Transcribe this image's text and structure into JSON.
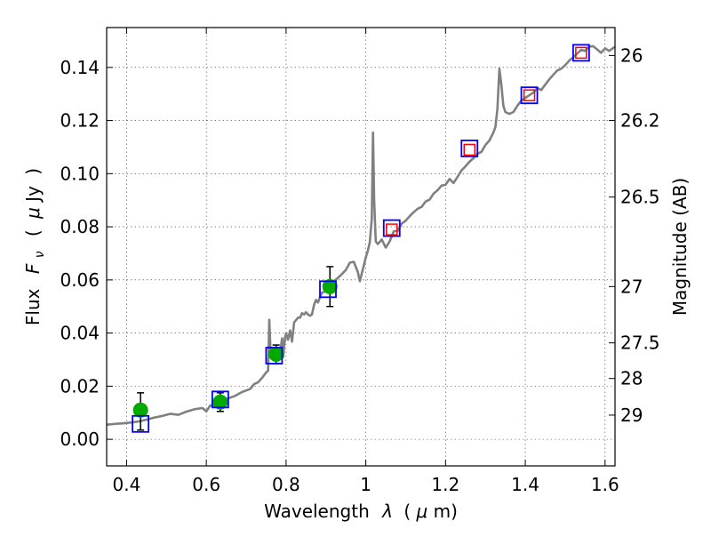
{
  "chart_data": {
    "type": "scatter",
    "title": "",
    "xlabel_parts": [
      "Wavelength",
      "λ",
      "(",
      "μ",
      "m)"
    ],
    "ylabel_parts": [
      "Flux",
      "F",
      "ν",
      "(",
      "μ",
      "Jy",
      ")"
    ],
    "y2label": "Magnitude (AB)",
    "xlim": [
      0.35,
      1.625
    ],
    "ylim": [
      -0.01,
      0.155
    ],
    "grid": true,
    "xticks": [
      {
        "v": 0.4,
        "label": "0.4"
      },
      {
        "v": 0.6,
        "label": "0.6"
      },
      {
        "v": 0.8,
        "label": "0.8"
      },
      {
        "v": 1.0,
        "label": "1"
      },
      {
        "v": 1.2,
        "label": "1.2"
      },
      {
        "v": 1.4,
        "label": "1.4"
      },
      {
        "v": 1.6,
        "label": "1.6"
      }
    ],
    "yticks": [
      {
        "v": 0.0,
        "label": "0.00"
      },
      {
        "v": 0.02,
        "label": "0.02"
      },
      {
        "v": 0.04,
        "label": "0.04"
      },
      {
        "v": 0.06,
        "label": "0.06"
      },
      {
        "v": 0.08,
        "label": "0.08"
      },
      {
        "v": 0.1,
        "label": "0.10"
      },
      {
        "v": 0.12,
        "label": "0.12"
      },
      {
        "v": 0.14,
        "label": "0.14"
      }
    ],
    "y2ticks": [
      {
        "flux": 0.1445,
        "label": "26"
      },
      {
        "flux": 0.12,
        "label": "26.2"
      },
      {
        "flux": 0.0912,
        "label": "26.5"
      },
      {
        "flux": 0.0575,
        "label": "27"
      },
      {
        "flux": 0.0363,
        "label": "27.5"
      },
      {
        "flux": 0.0229,
        "label": "28"
      },
      {
        "flux": 0.0091,
        "label": "29"
      }
    ],
    "series": [
      {
        "kind": "line",
        "color": "#808080",
        "points": [
          [
            0.35,
            0.0055
          ],
          [
            0.37,
            0.0058
          ],
          [
            0.39,
            0.006
          ],
          [
            0.41,
            0.0063
          ],
          [
            0.43,
            0.0067
          ],
          [
            0.45,
            0.0074
          ],
          [
            0.47,
            0.0082
          ],
          [
            0.49,
            0.0088
          ],
          [
            0.51,
            0.0096
          ],
          [
            0.53,
            0.0092
          ],
          [
            0.55,
            0.0104
          ],
          [
            0.57,
            0.0113
          ],
          [
            0.59,
            0.0118
          ],
          [
            0.6,
            0.0105
          ],
          [
            0.61,
            0.0128
          ],
          [
            0.62,
            0.0125
          ],
          [
            0.63,
            0.014
          ],
          [
            0.64,
            0.0138
          ],
          [
            0.65,
            0.0152
          ],
          [
            0.67,
            0.0162
          ],
          [
            0.69,
            0.0178
          ],
          [
            0.71,
            0.019
          ],
          [
            0.72,
            0.0208
          ],
          [
            0.73,
            0.0215
          ],
          [
            0.74,
            0.0232
          ],
          [
            0.75,
            0.0252
          ],
          [
            0.755,
            0.0258
          ],
          [
            0.758,
            0.045
          ],
          [
            0.761,
            0.033
          ],
          [
            0.765,
            0.0305
          ],
          [
            0.77,
            0.031
          ],
          [
            0.775,
            0.034
          ],
          [
            0.78,
            0.0315
          ],
          [
            0.785,
            0.033
          ],
          [
            0.79,
            0.038
          ],
          [
            0.793,
            0.031
          ],
          [
            0.797,
            0.038
          ],
          [
            0.8,
            0.0398
          ],
          [
            0.805,
            0.0375
          ],
          [
            0.81,
            0.041
          ],
          [
            0.815,
            0.0368
          ],
          [
            0.82,
            0.044
          ],
          [
            0.83,
            0.0458
          ],
          [
            0.835,
            0.0458
          ],
          [
            0.84,
            0.0475
          ],
          [
            0.845,
            0.047
          ],
          [
            0.85,
            0.0478
          ],
          [
            0.855,
            0.047
          ],
          [
            0.86,
            0.0465
          ],
          [
            0.865,
            0.047
          ],
          [
            0.87,
            0.0505
          ],
          [
            0.875,
            0.0525
          ],
          [
            0.88,
            0.0515
          ],
          [
            0.885,
            0.0535
          ],
          [
            0.89,
            0.0552
          ],
          [
            0.9,
            0.0558
          ],
          [
            0.91,
            0.0578
          ],
          [
            0.92,
            0.0595
          ],
          [
            0.93,
            0.0608
          ],
          [
            0.94,
            0.0622
          ],
          [
            0.95,
            0.0638
          ],
          [
            0.96,
            0.0665
          ],
          [
            0.97,
            0.0668
          ],
          [
            0.98,
            0.063
          ],
          [
            0.985,
            0.0595
          ],
          [
            0.99,
            0.0625
          ],
          [
            0.995,
            0.0655
          ],
          [
            1.0,
            0.0685
          ],
          [
            1.005,
            0.071
          ],
          [
            1.01,
            0.0742
          ],
          [
            1.015,
            0.083
          ],
          [
            1.018,
            0.1155
          ],
          [
            1.021,
            0.09
          ],
          [
            1.025,
            0.0745
          ],
          [
            1.03,
            0.0735
          ],
          [
            1.04,
            0.0752
          ],
          [
            1.05,
            0.0722
          ],
          [
            1.06,
            0.0745
          ],
          [
            1.07,
            0.0783
          ],
          [
            1.08,
            0.0785
          ],
          [
            1.09,
            0.0812
          ],
          [
            1.1,
            0.0823
          ],
          [
            1.11,
            0.084
          ],
          [
            1.12,
            0.0855
          ],
          [
            1.13,
            0.0868
          ],
          [
            1.14,
            0.0875
          ],
          [
            1.15,
            0.0895
          ],
          [
            1.16,
            0.0902
          ],
          [
            1.17,
            0.0925
          ],
          [
            1.18,
            0.0938
          ],
          [
            1.19,
            0.0955
          ],
          [
            1.2,
            0.0958
          ],
          [
            1.21,
            0.098
          ],
          [
            1.22,
            0.0965
          ],
          [
            1.23,
            0.0988
          ],
          [
            1.24,
            0.1012
          ],
          [
            1.25,
            0.1028
          ],
          [
            1.26,
            0.1045
          ],
          [
            1.27,
            0.1058
          ],
          [
            1.28,
            0.1075
          ],
          [
            1.29,
            0.1082
          ],
          [
            1.3,
            0.1108
          ],
          [
            1.31,
            0.1125
          ],
          [
            1.32,
            0.1155
          ],
          [
            1.325,
            0.1175
          ],
          [
            1.33,
            0.1245
          ],
          [
            1.335,
            0.1395
          ],
          [
            1.34,
            0.1335
          ],
          [
            1.345,
            0.1255
          ],
          [
            1.35,
            0.1232
          ],
          [
            1.36,
            0.1225
          ],
          [
            1.37,
            0.1232
          ],
          [
            1.38,
            0.1255
          ],
          [
            1.39,
            0.1275
          ],
          [
            1.4,
            0.1285
          ],
          [
            1.41,
            0.1295
          ],
          [
            1.42,
            0.1305
          ],
          [
            1.43,
            0.1322
          ],
          [
            1.44,
            0.1315
          ],
          [
            1.45,
            0.1335
          ],
          [
            1.46,
            0.1355
          ],
          [
            1.47,
            0.1372
          ],
          [
            1.48,
            0.1388
          ],
          [
            1.49,
            0.1395
          ],
          [
            1.5,
            0.1408
          ],
          [
            1.51,
            0.1425
          ],
          [
            1.52,
            0.1438
          ],
          [
            1.53,
            0.1452
          ],
          [
            1.54,
            0.1466
          ],
          [
            1.55,
            0.1462
          ],
          [
            1.56,
            0.1478
          ],
          [
            1.57,
            0.148
          ],
          [
            1.58,
            0.1468
          ],
          [
            1.59,
            0.1455
          ],
          [
            1.6,
            0.1472
          ],
          [
            1.61,
            0.1462
          ],
          [
            1.625,
            0.1478
          ]
        ]
      },
      {
        "kind": "errorbar",
        "color": "#00aa00",
        "marker": "circle",
        "points": [
          {
            "x": 0.435,
            "y": 0.011,
            "lo": 0.0035,
            "hi": 0.0175
          },
          {
            "x": 0.635,
            "y": 0.014,
            "lo": 0.0105,
            "hi": 0.0175
          },
          {
            "x": 0.775,
            "y": 0.032,
            "lo": 0.0285,
            "hi": 0.0355
          },
          {
            "x": 0.91,
            "y": 0.0575,
            "lo": 0.05,
            "hi": 0.065
          }
        ]
      },
      {
        "kind": "scatter",
        "color": "#0000ff",
        "marker": "square",
        "points": [
          [
            0.435,
            0.0058
          ],
          [
            0.635,
            0.015
          ],
          [
            0.77,
            0.0315
          ],
          [
            0.905,
            0.0565
          ],
          [
            1.065,
            0.0795
          ],
          [
            1.26,
            0.1095
          ],
          [
            1.41,
            0.1295
          ],
          [
            1.54,
            0.1455
          ]
        ]
      },
      {
        "kind": "scatter",
        "color": "#ff0000",
        "marker": "square-small",
        "points": [
          [
            1.065,
            0.079
          ],
          [
            1.26,
            0.109
          ],
          [
            1.41,
            0.1295
          ],
          [
            1.54,
            0.1455
          ]
        ]
      }
    ]
  }
}
